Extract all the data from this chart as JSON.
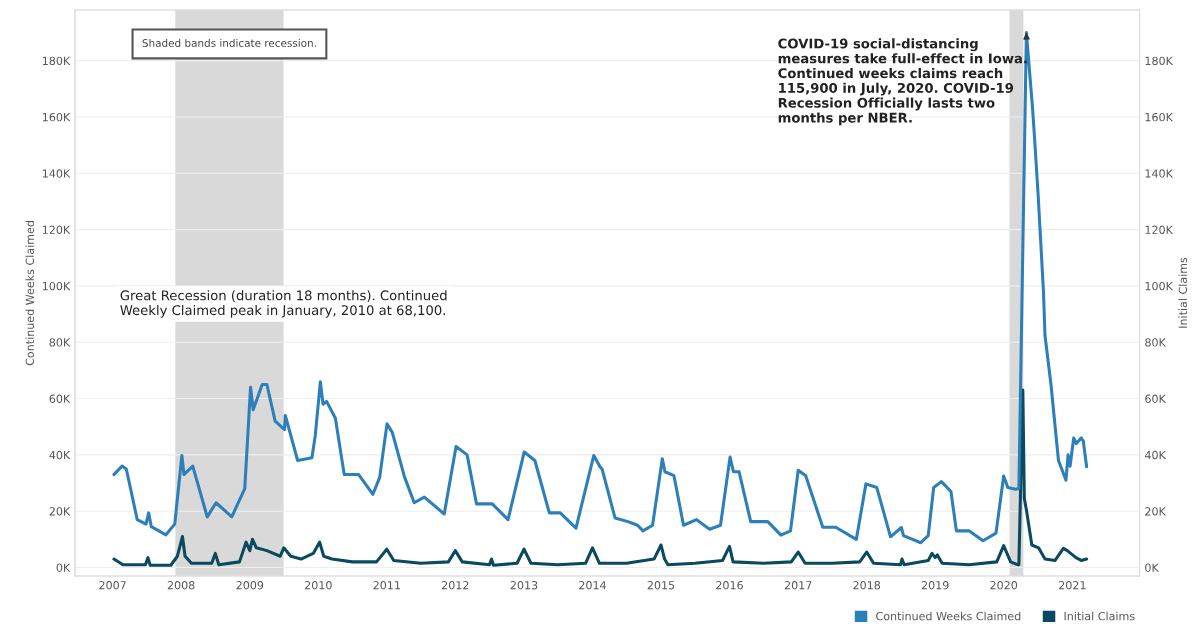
{
  "chart_data": {
    "type": "line",
    "ylabel": "Continued Weeks Claimed",
    "y2label": "Initial Claims",
    "xlim": [
      "2006-06-15",
      "2021-12-25"
    ],
    "xticks": [
      "2007",
      "2008",
      "2009",
      "2010",
      "2011",
      "2012",
      "2013",
      "2014",
      "2015",
      "2016",
      "2017",
      "2018",
      "2019",
      "2020",
      "2021"
    ],
    "ylim": [
      -3000,
      198000
    ],
    "yticks": [
      {
        "value": 0,
        "label": "0K"
      },
      {
        "value": 20000,
        "label": "20K"
      },
      {
        "value": 40000,
        "label": "40K"
      },
      {
        "value": 60000,
        "label": "60K"
      },
      {
        "value": 80000,
        "label": "80K"
      },
      {
        "value": 100000,
        "label": "100K"
      },
      {
        "value": 120000,
        "label": "120K"
      },
      {
        "value": 140000,
        "label": "140K"
      },
      {
        "value": 160000,
        "label": "160K"
      },
      {
        "value": 180000,
        "label": "180K"
      }
    ],
    "y2lim": [
      -3000,
      198000
    ],
    "y2ticks": [
      {
        "value": 0,
        "label": "0K"
      },
      {
        "value": 20000,
        "label": "20K"
      },
      {
        "value": 40000,
        "label": "40K"
      },
      {
        "value": 60000,
        "label": "60K"
      },
      {
        "value": 80000,
        "label": "80K"
      },
      {
        "value": 100000,
        "label": "100K"
      },
      {
        "value": 120000,
        "label": "120K"
      },
      {
        "value": 140000,
        "label": "140K"
      },
      {
        "value": 160000,
        "label": "160K"
      },
      {
        "value": 180000,
        "label": "180K"
      }
    ],
    "grid": true,
    "legend": "bottom right",
    "marker": "none",
    "line_style": "solid",
    "bands": [
      {
        "axis": "x",
        "from": "2007-12-01",
        "to": "2009-06-30",
        "color": "#d9d9d9"
      },
      {
        "axis": "x",
        "from": "2020-02-01",
        "to": "2020-04-15",
        "color": "#d9d9d9"
      }
    ],
    "annotations": [
      "Shaded bands indicate recession.",
      "Great Recession (duration 18 months). Continued Weekly Claimed peak in January, 2010 at 68,100.",
      {
        "text": "COVID-19 social-distancing measures take full-effect in Iowa. Continued weeks claims reach 115,900 in July, 2020. COVID-19 Recession Officially lasts two months per NBER.",
        "x": "2020-05-01",
        "y": 190000
      }
    ],
    "series": [
      {
        "name": "Continued Weeks Claimed",
        "color": "#2c7fb8",
        "x": [
          "2007-01-08",
          "2007-02-20",
          "2007-03-15",
          "2007-05-12",
          "2007-06-28",
          "2007-07-12",
          "2007-07-26",
          "2007-10-12",
          "2007-11-28",
          "2008-01-05",
          "2008-01-16",
          "2008-03-03",
          "2008-05-19",
          "2008-07-05",
          "2008-09-27",
          "2008-12-05",
          "2009-01-05",
          "2009-01-19",
          "2009-03-08",
          "2009-04-02",
          "2009-05-16",
          "2009-07-05",
          "2009-07-09",
          "2009-09-13",
          "2009-11-28",
          "2009-12-16",
          "2010-01-12",
          "2010-01-26",
          "2010-02-14",
          "2010-04-02",
          "2010-05-19",
          "2010-08-04",
          "2010-10-19",
          "2010-11-24",
          "2011-01-02",
          "2011-01-30",
          "2011-04-06",
          "2011-05-27",
          "2011-07-20",
          "2011-11-03",
          "2012-01-05",
          "2012-03-04",
          "2012-04-23",
          "2012-07-16",
          "2012-10-08",
          "2013-01-02",
          "2013-02-28",
          "2013-05-16",
          "2013-07-13",
          "2013-10-05",
          "2014-01-08",
          "2014-02-10",
          "2014-02-21",
          "2014-05-01",
          "2014-07-09",
          "2014-08-29",
          "2014-09-27",
          "2014-11-17",
          "2015-01-08",
          "2015-01-22",
          "2015-03-11",
          "2015-05-01",
          "2015-07-09",
          "2015-09-17",
          "2015-11-14",
          "2016-01-04",
          "2016-01-22",
          "2016-02-21",
          "2016-04-23",
          "2016-07-23",
          "2016-10-01",
          "2016-11-21",
          "2017-01-01",
          "2017-02-10",
          "2017-05-12",
          "2017-07-20",
          "2017-11-07",
          "2017-12-28",
          "2018-02-24",
          "2018-05-08",
          "2018-07-05",
          "2018-07-16",
          "2018-10-16",
          "2018-11-25",
          "2018-12-24",
          "2019-02-03",
          "2019-03-26",
          "2019-04-24",
          "2019-07-02",
          "2019-09-13",
          "2019-11-21",
          "2020-01-01",
          "2020-01-23",
          "2020-03-04",
          "2020-03-22",
          "2020-05-01",
          "2020-06-03",
          "2020-06-14",
          "2020-07-02",
          "2020-07-31",
          "2020-08-08",
          "2020-09-09",
          "2020-10-19",
          "2020-11-28",
          "2020-12-09",
          "2020-12-20",
          "2021-01-08",
          "2021-01-22",
          "2021-02-17",
          "2021-02-28",
          "2021-03-18"
        ],
        "values": [
          33000,
          36000,
          35000,
          17000,
          15400,
          19400,
          14500,
          11600,
          15400,
          39800,
          33000,
          36000,
          18000,
          23000,
          18000,
          28000,
          64000,
          56000,
          65000,
          65000,
          52000,
          49000,
          54000,
          38000,
          39000,
          47000,
          66000,
          58000,
          59000,
          53000,
          33000,
          33000,
          26000,
          32000,
          51000,
          48000,
          32000,
          23000,
          25000,
          19000,
          43000,
          40000,
          22600,
          22600,
          17000,
          41000,
          38000,
          19400,
          19400,
          14000,
          39800,
          35800,
          35000,
          17600,
          16300,
          15000,
          13000,
          15000,
          38600,
          34000,
          32600,
          15000,
          17000,
          13600,
          15000,
          39200,
          34000,
          34000,
          16300,
          16300,
          11500,
          13000,
          34500,
          32600,
          14300,
          14300,
          10000,
          29700,
          28400,
          10900,
          14200,
          11300,
          8800,
          11300,
          28400,
          30500,
          27000,
          13000,
          13000,
          9500,
          12200,
          32500,
          28400,
          27800,
          28000,
          190000,
          163000,
          152000,
          133000,
          98000,
          82500,
          65000,
          38000,
          31000,
          40000,
          36000,
          46000,
          44000,
          46000,
          45000,
          35800
        ]
      },
      {
        "name": "Initial Claims",
        "color": "#0b4a5e",
        "axis": "y2",
        "x": [
          "2007-01-08",
          "2007-02-25",
          "2007-06-25",
          "2007-07-08",
          "2007-07-20",
          "2007-11-07",
          "2007-12-12",
          "2008-01-08",
          "2008-01-22",
          "2008-02-25",
          "2008-06-12",
          "2008-07-01",
          "2008-07-20",
          "2008-11-07",
          "2008-12-12",
          "2009-01-01",
          "2009-01-15",
          "2009-02-05",
          "2009-04-02",
          "2009-06-12",
          "2009-07-01",
          "2009-08-07",
          "2009-10-01",
          "2009-12-05",
          "2010-01-08",
          "2010-01-30",
          "2010-03-15",
          "2010-07-01",
          "2010-11-07",
          "2011-01-01",
          "2011-02-07",
          "2011-07-01",
          "2011-11-25",
          "2012-01-01",
          "2012-02-07",
          "2012-07-01",
          "2012-07-12",
          "2012-07-22",
          "2012-11-25",
          "2013-01-01",
          "2013-02-07",
          "2013-07-01",
          "2013-11-25",
          "2014-01-01",
          "2014-02-07",
          "2014-07-01",
          "2014-11-25",
          "2015-01-01",
          "2015-01-20",
          "2015-02-07",
          "2015-07-01",
          "2015-11-25",
          "2016-01-01",
          "2016-01-20",
          "2016-07-01",
          "2016-11-25",
          "2017-01-01",
          "2017-02-07",
          "2017-07-01",
          "2017-11-25",
          "2018-01-01",
          "2018-02-07",
          "2018-07-01",
          "2018-07-08",
          "2018-07-20",
          "2018-11-25",
          "2018-12-15",
          "2019-01-01",
          "2019-01-12",
          "2019-02-07",
          "2019-07-01",
          "2019-11-25",
          "2020-01-01",
          "2020-02-07",
          "2020-03-15",
          "2020-03-22",
          "2020-04-12",
          "2020-04-20",
          "2020-05-01",
          "2020-05-30",
          "2020-07-05",
          "2020-08-08",
          "2020-10-01",
          "2020-11-14",
          "2020-12-05",
          "2021-01-20",
          "2021-02-17",
          "2021-03-18"
        ],
        "values": [
          3000,
          1000,
          1000,
          3500,
          800,
          800,
          4000,
          11000,
          4000,
          1500,
          1500,
          5000,
          1000,
          2000,
          9000,
          6000,
          10000,
          7000,
          6000,
          4000,
          7000,
          4000,
          3000,
          5000,
          9000,
          4000,
          3000,
          2000,
          2000,
          6500,
          2500,
          1500,
          2000,
          6000,
          2000,
          1000,
          3000,
          800,
          1500,
          6500,
          1500,
          1000,
          1500,
          7000,
          1500,
          1500,
          3000,
          8000,
          3000,
          1000,
          1500,
          2500,
          7500,
          2000,
          1500,
          2000,
          5500,
          1500,
          1500,
          2000,
          5500,
          1500,
          1000,
          3000,
          1000,
          2500,
          5000,
          3500,
          4500,
          1500,
          1000,
          2000,
          7800,
          2000,
          1000,
          1000,
          63000,
          24500,
          20500,
          8000,
          7000,
          3000,
          2500,
          6800,
          6000,
          3500,
          2500,
          3000
        ]
      }
    ]
  }
}
